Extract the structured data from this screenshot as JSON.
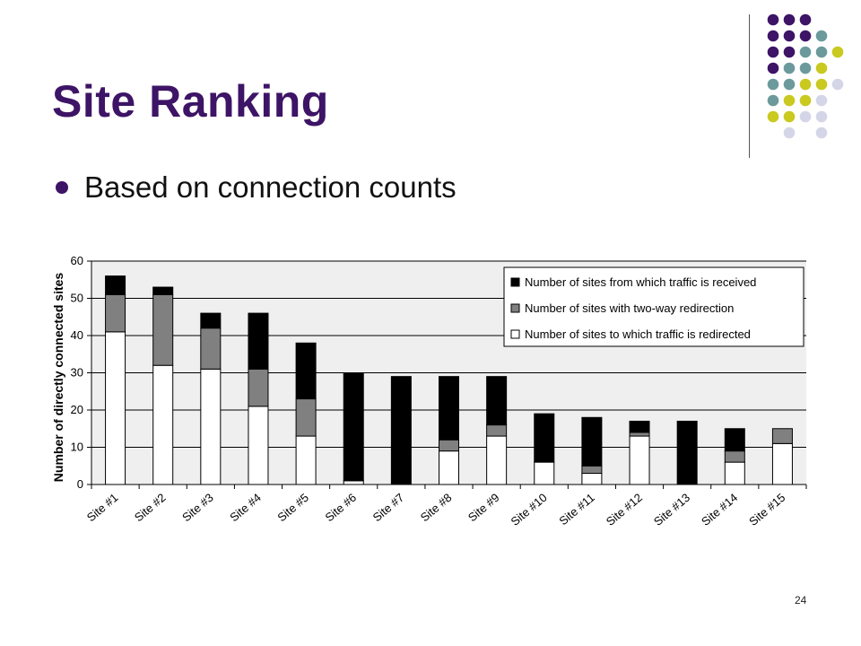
{
  "slide": {
    "title": "Site Ranking",
    "bullet": "Based on connection counts",
    "page_number": "24"
  },
  "colors": {
    "title": "#3d1466",
    "purple": "#3d1466",
    "teal": "#6c9a9c",
    "yellow": "#c9c91f",
    "lavender": "#d5d5e8",
    "plot_bg": "#efefef",
    "received": "#000000",
    "twoway": "#808080",
    "redirected": "#ffffff"
  },
  "decor": {
    "dots": [
      [
        "purple",
        "purple",
        "purple",
        null,
        null
      ],
      [
        "purple",
        "purple",
        "purple",
        "teal",
        null
      ],
      [
        "purple",
        "purple",
        "teal",
        "teal",
        "yellow"
      ],
      [
        "purple",
        "teal",
        "teal",
        "yellow",
        null
      ],
      [
        "teal",
        "teal",
        "yellow",
        "yellow",
        "lavender"
      ],
      [
        "teal",
        "yellow",
        "yellow",
        "lavender",
        null
      ],
      [
        "yellow",
        "yellow",
        "lavender",
        "lavender",
        null
      ],
      [
        null,
        "lavender",
        null,
        "lavender",
        null
      ]
    ]
  },
  "chart_data": {
    "type": "bar",
    "stacked": true,
    "title": "",
    "xlabel": "",
    "ylabel": "Number of directly connected sites",
    "ylim": [
      0,
      60
    ],
    "yticks": [
      0,
      10,
      20,
      30,
      40,
      50,
      60
    ],
    "grid": true,
    "legend_position": "top-right",
    "categories": [
      "Site #1",
      "Site #2",
      "Site #3",
      "Site #4",
      "Site #5",
      "Site #6",
      "Site #7",
      "Site #8",
      "Site #9",
      "Site #10",
      "Site #11",
      "Site #12",
      "Site #13",
      "Site #14",
      "Site #15"
    ],
    "series": [
      {
        "name": "Number of sites to which traffic is redirected",
        "color": "#ffffff",
        "values": [
          41,
          32,
          31,
          21,
          13,
          1,
          0,
          9,
          13,
          6,
          3,
          13,
          0,
          6,
          11
        ]
      },
      {
        "name": "Number of sites with two-way redirection",
        "color": "#808080",
        "values": [
          10,
          19,
          11,
          10,
          10,
          0,
          0,
          3,
          3,
          0,
          2,
          1,
          0,
          3,
          4
        ]
      },
      {
        "name": "Number of sites from which traffic is received",
        "color": "#000000",
        "values": [
          5,
          2,
          4,
          15,
          15,
          29,
          29,
          17,
          13,
          13,
          13,
          3,
          17,
          6,
          0
        ]
      }
    ],
    "legend_order": [
      2,
      1,
      0
    ]
  }
}
